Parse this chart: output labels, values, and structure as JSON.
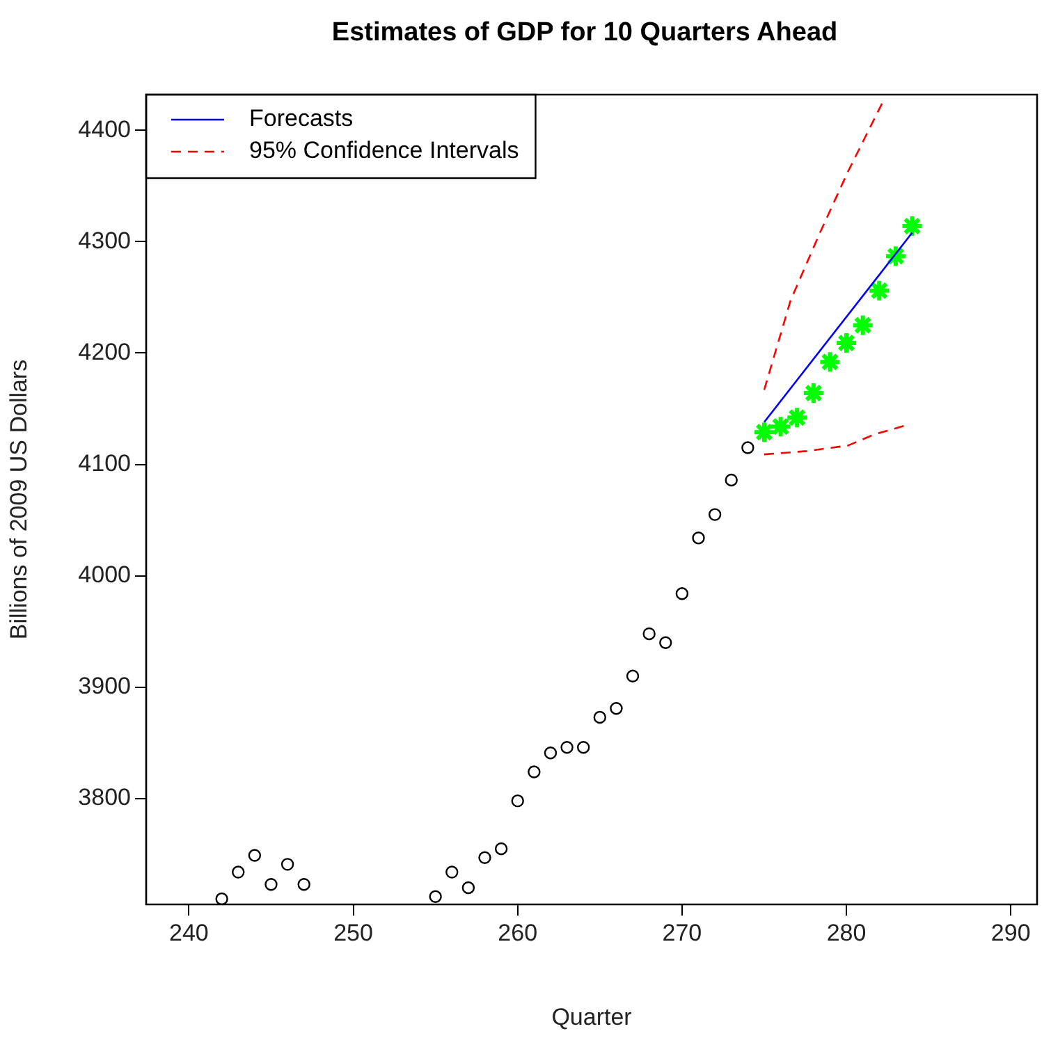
{
  "chart_data": {
    "type": "scatter",
    "title": "Estimates of GDP for 10 Quarters Ahead",
    "xlabel": "Quarter",
    "ylabel": "Billions of 2009 US Dollars",
    "xlim": [
      237.4,
      291.6
    ],
    "ylim": [
      3705,
      4432
    ],
    "xticks": [
      240,
      250,
      260,
      270,
      280,
      290
    ],
    "yticks": [
      3800,
      3900,
      4000,
      4100,
      4200,
      4300,
      4400
    ],
    "grid": false,
    "legend": "top left",
    "series": [
      {
        "color": "#000000",
        "marker": "circle",
        "x": [
          242,
          243,
          244,
          245,
          246,
          247,
          255,
          256,
          257,
          258,
          259,
          260,
          261,
          262,
          263,
          264,
          265,
          266,
          267,
          268,
          269,
          270,
          271,
          272,
          273,
          274
        ],
        "values": [
          3710,
          3734,
          3749,
          3723,
          3741,
          3723,
          3712,
          3734,
          3720,
          3747,
          3755,
          3798,
          3824,
          3841,
          3846,
          3846,
          3873,
          3881,
          3910,
          3948,
          3940,
          3984,
          4034,
          4055,
          4086,
          4115
        ]
      },
      {
        "type": "line",
        "name": "Forecasts",
        "color": "#0000ff",
        "line_style": "solid",
        "x": [
          275,
          284
        ],
        "values": [
          4138,
          4308
        ]
      },
      {
        "type": "line",
        "name": "95% Confidence Intervals",
        "color": "#ff0000",
        "line_style": "dashed",
        "x": [
          275,
          276.6,
          278.3,
          280.1,
          282.3
        ],
        "values": [
          4167,
          4247,
          4305,
          4363,
          4428
        ]
      },
      {
        "type": "line",
        "color": "#ff0000",
        "line_style": "dashed",
        "x": [
          275,
          277.6,
          280.1,
          281.7,
          283.6
        ],
        "values": [
          4109,
          4112,
          4117,
          4127,
          4135
        ]
      },
      {
        "color": "#00ff00",
        "marker": "cross",
        "x": [
          275,
          276,
          277,
          278,
          279,
          280,
          281,
          282,
          283,
          284
        ],
        "values": [
          4129,
          4134,
          4142,
          4164,
          4192,
          4209,
          4225,
          4256,
          4287,
          4314
        ]
      }
    ]
  }
}
